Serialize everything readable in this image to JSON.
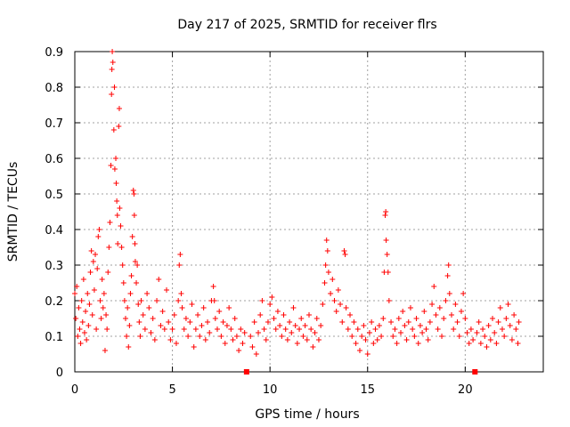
{
  "chart_data": {
    "type": "scatter",
    "title": "Day 217 of 2025, SRMTID for receiver flrs",
    "xlabel": "GPS time / hours",
    "ylabel": "SRMTID / TECUs",
    "xlim": [
      0,
      24
    ],
    "ylim": [
      0,
      0.9
    ],
    "xticks": [
      0,
      5,
      10,
      15,
      20
    ],
    "yticks": [
      0,
      0.1,
      0.2,
      0.3,
      0.4,
      0.5,
      0.6,
      0.7,
      0.8,
      0.9
    ],
    "xtick_labels": [
      "0",
      "5",
      "10",
      "15",
      "20"
    ],
    "ytick_labels": [
      "0",
      "0.1",
      "0.2",
      "0.3",
      "0.4",
      "0.5",
      "0.6",
      "0.7",
      "0.8",
      "0.9"
    ],
    "grid": true,
    "marker": "plus",
    "color": "#ff0000",
    "gap_markers": [
      {
        "x": 8.8,
        "y": 0
      },
      {
        "x": 20.5,
        "y": 0
      }
    ],
    "series": [
      {
        "name": "SRMTID",
        "points": [
          [
            0.0,
            0.22
          ],
          [
            0.05,
            0.15
          ],
          [
            0.1,
            0.24
          ],
          [
            0.15,
            0.1
          ],
          [
            0.2,
            0.18
          ],
          [
            0.25,
            0.12
          ],
          [
            0.3,
            0.08
          ],
          [
            0.35,
            0.2
          ],
          [
            0.4,
            0.14
          ],
          [
            0.45,
            0.26
          ],
          [
            0.5,
            0.11
          ],
          [
            0.55,
            0.17
          ],
          [
            0.6,
            0.09
          ],
          [
            0.65,
            0.22
          ],
          [
            0.7,
            0.13
          ],
          [
            0.75,
            0.19
          ],
          [
            0.8,
            0.28
          ],
          [
            0.85,
            0.34
          ],
          [
            0.9,
            0.16
          ],
          [
            0.95,
            0.31
          ],
          [
            1.0,
            0.23
          ],
          [
            1.05,
            0.33
          ],
          [
            1.1,
            0.12
          ],
          [
            1.15,
            0.29
          ],
          [
            1.2,
            0.38
          ],
          [
            1.25,
            0.4
          ],
          [
            1.3,
            0.2
          ],
          [
            1.35,
            0.15
          ],
          [
            1.4,
            0.26
          ],
          [
            1.45,
            0.18
          ],
          [
            1.5,
            0.22
          ],
          [
            1.55,
            0.06
          ],
          [
            1.6,
            0.16
          ],
          [
            1.65,
            0.12
          ],
          [
            1.7,
            0.28
          ],
          [
            1.75,
            0.35
          ],
          [
            1.8,
            0.42
          ],
          [
            1.85,
            0.58
          ],
          [
            1.88,
            0.78
          ],
          [
            1.9,
            0.85
          ],
          [
            1.92,
            0.9
          ],
          [
            1.95,
            0.87
          ],
          [
            2.0,
            0.68
          ],
          [
            2.03,
            0.8
          ],
          [
            2.05,
            0.57
          ],
          [
            2.1,
            0.6
          ],
          [
            2.12,
            0.53
          ],
          [
            2.15,
            0.48
          ],
          [
            2.18,
            0.44
          ],
          [
            2.2,
            0.36
          ],
          [
            2.25,
            0.69
          ],
          [
            2.28,
            0.74
          ],
          [
            2.3,
            0.46
          ],
          [
            2.35,
            0.41
          ],
          [
            2.4,
            0.35
          ],
          [
            2.45,
            0.3
          ],
          [
            2.5,
            0.25
          ],
          [
            2.55,
            0.2
          ],
          [
            2.6,
            0.15
          ],
          [
            2.65,
            0.1
          ],
          [
            2.7,
            0.18
          ],
          [
            2.75,
            0.07
          ],
          [
            2.8,
            0.13
          ],
          [
            2.85,
            0.22
          ],
          [
            2.9,
            0.27
          ],
          [
            2.95,
            0.38
          ],
          [
            3.0,
            0.51
          ],
          [
            3.03,
            0.5
          ],
          [
            3.05,
            0.44
          ],
          [
            3.08,
            0.36
          ],
          [
            3.1,
            0.31
          ],
          [
            3.15,
            0.25
          ],
          [
            3.2,
            0.3
          ],
          [
            3.25,
            0.19
          ],
          [
            3.3,
            0.14
          ],
          [
            3.35,
            0.1
          ],
          [
            3.4,
            0.2
          ],
          [
            3.5,
            0.16
          ],
          [
            3.6,
            0.12
          ],
          [
            3.7,
            0.22
          ],
          [
            3.8,
            0.18
          ],
          [
            3.9,
            0.11
          ],
          [
            4.0,
            0.15
          ],
          [
            4.1,
            0.09
          ],
          [
            4.2,
            0.2
          ],
          [
            4.3,
            0.26
          ],
          [
            4.4,
            0.13
          ],
          [
            4.5,
            0.17
          ],
          [
            4.6,
            0.12
          ],
          [
            4.7,
            0.23
          ],
          [
            4.8,
            0.14
          ],
          [
            4.9,
            0.09
          ],
          [
            5.0,
            0.12
          ],
          [
            5.1,
            0.16
          ],
          [
            5.2,
            0.08
          ],
          [
            5.3,
            0.2
          ],
          [
            5.35,
            0.3
          ],
          [
            5.4,
            0.33
          ],
          [
            5.45,
            0.22
          ],
          [
            5.5,
            0.18
          ],
          [
            5.6,
            0.12
          ],
          [
            5.7,
            0.15
          ],
          [
            5.8,
            0.1
          ],
          [
            5.9,
            0.14
          ],
          [
            6.0,
            0.19
          ],
          [
            6.1,
            0.07
          ],
          [
            6.2,
            0.12
          ],
          [
            6.3,
            0.16
          ],
          [
            6.4,
            0.1
          ],
          [
            6.5,
            0.13
          ],
          [
            6.6,
            0.18
          ],
          [
            6.7,
            0.09
          ],
          [
            6.8,
            0.14
          ],
          [
            6.9,
            0.11
          ],
          [
            7.0,
            0.2
          ],
          [
            7.1,
            0.24
          ],
          [
            7.15,
            0.2
          ],
          [
            7.2,
            0.15
          ],
          [
            7.3,
            0.12
          ],
          [
            7.4,
            0.17
          ],
          [
            7.5,
            0.1
          ],
          [
            7.6,
            0.14
          ],
          [
            7.7,
            0.08
          ],
          [
            7.8,
            0.13
          ],
          [
            7.9,
            0.18
          ],
          [
            8.0,
            0.12
          ],
          [
            8.1,
            0.09
          ],
          [
            8.2,
            0.15
          ],
          [
            8.3,
            0.1
          ],
          [
            8.4,
            0.06
          ],
          [
            8.5,
            0.12
          ],
          [
            8.6,
            0.08
          ],
          [
            8.7,
            0.11
          ],
          [
            9.0,
            0.1
          ],
          [
            9.1,
            0.07
          ],
          [
            9.2,
            0.14
          ],
          [
            9.3,
            0.05
          ],
          [
            9.4,
            0.11
          ],
          [
            9.5,
            0.16
          ],
          [
            9.6,
            0.2
          ],
          [
            9.7,
            0.12
          ],
          [
            9.8,
            0.09
          ],
          [
            9.9,
            0.14
          ],
          [
            10.0,
            0.19
          ],
          [
            10.1,
            0.21
          ],
          [
            10.2,
            0.15
          ],
          [
            10.3,
            0.12
          ],
          [
            10.4,
            0.17
          ],
          [
            10.5,
            0.13
          ],
          [
            10.6,
            0.1
          ],
          [
            10.7,
            0.16
          ],
          [
            10.8,
            0.12
          ],
          [
            10.9,
            0.09
          ],
          [
            11.0,
            0.14
          ],
          [
            11.1,
            0.11
          ],
          [
            11.2,
            0.18
          ],
          [
            11.3,
            0.13
          ],
          [
            11.4,
            0.08
          ],
          [
            11.5,
            0.12
          ],
          [
            11.6,
            0.15
          ],
          [
            11.7,
            0.1
          ],
          [
            11.8,
            0.13
          ],
          [
            11.9,
            0.09
          ],
          [
            12.0,
            0.16
          ],
          [
            12.1,
            0.12
          ],
          [
            12.2,
            0.07
          ],
          [
            12.3,
            0.11
          ],
          [
            12.4,
            0.15
          ],
          [
            12.5,
            0.09
          ],
          [
            12.6,
            0.13
          ],
          [
            12.7,
            0.19
          ],
          [
            12.8,
            0.25
          ],
          [
            12.85,
            0.3
          ],
          [
            12.9,
            0.37
          ],
          [
            12.95,
            0.34
          ],
          [
            13.0,
            0.28
          ],
          [
            13.1,
            0.22
          ],
          [
            13.2,
            0.26
          ],
          [
            13.3,
            0.2
          ],
          [
            13.4,
            0.17
          ],
          [
            13.5,
            0.23
          ],
          [
            13.6,
            0.19
          ],
          [
            13.7,
            0.14
          ],
          [
            13.8,
            0.34
          ],
          [
            13.85,
            0.33
          ],
          [
            13.9,
            0.18
          ],
          [
            14.0,
            0.12
          ],
          [
            14.1,
            0.16
          ],
          [
            14.2,
            0.1
          ],
          [
            14.3,
            0.14
          ],
          [
            14.4,
            0.08
          ],
          [
            14.5,
            0.12
          ],
          [
            14.6,
            0.06
          ],
          [
            14.7,
            0.1
          ],
          [
            14.8,
            0.13
          ],
          [
            14.9,
            0.09
          ],
          [
            15.0,
            0.05
          ],
          [
            15.1,
            0.11
          ],
          [
            15.2,
            0.14
          ],
          [
            15.3,
            0.08
          ],
          [
            15.4,
            0.12
          ],
          [
            15.5,
            0.09
          ],
          [
            15.6,
            0.13
          ],
          [
            15.7,
            0.1
          ],
          [
            15.8,
            0.15
          ],
          [
            15.85,
            0.28
          ],
          [
            15.9,
            0.44
          ],
          [
            15.93,
            0.45
          ],
          [
            15.95,
            0.37
          ],
          [
            16.0,
            0.33
          ],
          [
            16.05,
            0.28
          ],
          [
            16.1,
            0.2
          ],
          [
            16.2,
            0.14
          ],
          [
            16.3,
            0.1
          ],
          [
            16.4,
            0.12
          ],
          [
            16.5,
            0.08
          ],
          [
            16.6,
            0.15
          ],
          [
            16.7,
            0.11
          ],
          [
            16.8,
            0.17
          ],
          [
            16.9,
            0.13
          ],
          [
            17.0,
            0.09
          ],
          [
            17.1,
            0.14
          ],
          [
            17.2,
            0.18
          ],
          [
            17.3,
            0.12
          ],
          [
            17.4,
            0.1
          ],
          [
            17.5,
            0.15
          ],
          [
            17.6,
            0.08
          ],
          [
            17.7,
            0.13
          ],
          [
            17.8,
            0.11
          ],
          [
            17.9,
            0.17
          ],
          [
            18.0,
            0.12
          ],
          [
            18.1,
            0.09
          ],
          [
            18.2,
            0.14
          ],
          [
            18.3,
            0.19
          ],
          [
            18.4,
            0.24
          ],
          [
            18.5,
            0.16
          ],
          [
            18.6,
            0.12
          ],
          [
            18.7,
            0.18
          ],
          [
            18.8,
            0.1
          ],
          [
            18.9,
            0.15
          ],
          [
            19.0,
            0.2
          ],
          [
            19.1,
            0.27
          ],
          [
            19.15,
            0.3
          ],
          [
            19.2,
            0.22
          ],
          [
            19.3,
            0.16
          ],
          [
            19.4,
            0.12
          ],
          [
            19.5,
            0.19
          ],
          [
            19.6,
            0.14
          ],
          [
            19.7,
            0.1
          ],
          [
            19.8,
            0.17
          ],
          [
            19.9,
            0.22
          ],
          [
            20.0,
            0.15
          ],
          [
            20.1,
            0.11
          ],
          [
            20.2,
            0.08
          ],
          [
            20.3,
            0.12
          ],
          [
            20.4,
            0.09
          ],
          [
            20.6,
            0.11
          ],
          [
            20.7,
            0.14
          ],
          [
            20.8,
            0.08
          ],
          [
            20.9,
            0.12
          ],
          [
            21.0,
            0.1
          ],
          [
            21.1,
            0.07
          ],
          [
            21.2,
            0.13
          ],
          [
            21.3,
            0.09
          ],
          [
            21.4,
            0.15
          ],
          [
            21.5,
            0.11
          ],
          [
            21.6,
            0.08
          ],
          [
            21.7,
            0.14
          ],
          [
            21.8,
            0.18
          ],
          [
            21.9,
            0.12
          ],
          [
            22.0,
            0.1
          ],
          [
            22.1,
            0.15
          ],
          [
            22.2,
            0.19
          ],
          [
            22.3,
            0.13
          ],
          [
            22.4,
            0.09
          ],
          [
            22.5,
            0.16
          ],
          [
            22.6,
            0.12
          ],
          [
            22.7,
            0.08
          ],
          [
            22.75,
            0.14
          ]
        ]
      }
    ]
  }
}
